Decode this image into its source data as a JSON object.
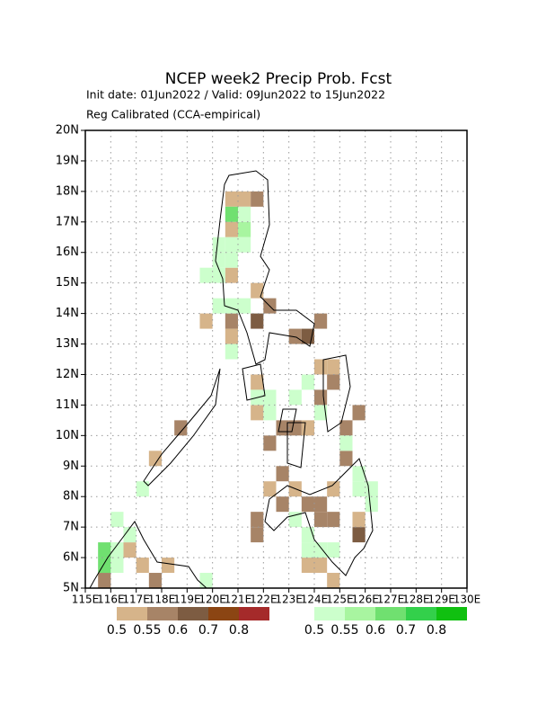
{
  "map": {
    "title": "NCEP week2 Precip Prob. Fcst",
    "subtitle": "Init date: 01Jun2022 / Valid: 09Jun2022 to 15Jun2022",
    "method": "Reg Calibrated (CCA-empirical)",
    "xlim": [
      115,
      130
    ],
    "ylim": [
      5,
      20
    ],
    "cell_size": 0.5,
    "grid": true,
    "xticks": [
      {
        "value": 115,
        "label": "115E"
      },
      {
        "value": 116,
        "label": "116E"
      },
      {
        "value": 117,
        "label": "117E"
      },
      {
        "value": 118,
        "label": "118E"
      },
      {
        "value": 119,
        "label": "119E"
      },
      {
        "value": 120,
        "label": "120E"
      },
      {
        "value": 121,
        "label": "121E"
      },
      {
        "value": 122,
        "label": "122E"
      },
      {
        "value": 123,
        "label": "123E"
      },
      {
        "value": 124,
        "label": "124E"
      },
      {
        "value": 125,
        "label": "125E"
      },
      {
        "value": 126,
        "label": "126E"
      },
      {
        "value": 127,
        "label": "127E"
      },
      {
        "value": 128,
        "label": "128E"
      },
      {
        "value": 129,
        "label": "129E"
      },
      {
        "value": 130,
        "label": "130E"
      }
    ],
    "yticks": [
      {
        "value": 5,
        "label": "5N"
      },
      {
        "value": 6,
        "label": "6N"
      },
      {
        "value": 7,
        "label": "7N"
      },
      {
        "value": 8,
        "label": "8N"
      },
      {
        "value": 9,
        "label": "9N"
      },
      {
        "value": 10,
        "label": "10N"
      },
      {
        "value": 11,
        "label": "11N"
      },
      {
        "value": 12,
        "label": "12N"
      },
      {
        "value": 13,
        "label": "13N"
      },
      {
        "value": 14,
        "label": "14N"
      },
      {
        "value": 15,
        "label": "15N"
      },
      {
        "value": 16,
        "label": "16N"
      },
      {
        "value": 17,
        "label": "17N"
      },
      {
        "value": 18,
        "label": "18N"
      },
      {
        "value": 19,
        "label": "19N"
      },
      {
        "value": 20,
        "label": "20N"
      }
    ],
    "levels": [
      0.5,
      0.55,
      0.6,
      0.7,
      0.8
    ],
    "below_colors": [
      "#d6b48a",
      "#a78467",
      "#7d5c42",
      "#8b4513",
      "#a52a2a"
    ],
    "above_colors": [
      "#ccffcc",
      "#a8f5a0",
      "#70e070",
      "#33d04b",
      "#10c010"
    ],
    "below": [
      [
        120.5,
        17.5,
        0.5
      ],
      [
        121,
        17.5,
        0.5
      ],
      [
        121.5,
        17.5,
        0.55
      ],
      [
        120.5,
        16.5,
        0.5
      ],
      [
        120.5,
        15,
        0.5
      ],
      [
        121.5,
        14.5,
        0.5
      ],
      [
        122,
        14,
        0.55
      ],
      [
        120.5,
        13.5,
        0.55
      ],
      [
        119.5,
        13.5,
        0.5
      ],
      [
        120.5,
        13,
        0.5
      ],
      [
        121.5,
        13.5,
        0.6
      ],
      [
        123,
        13,
        0.55
      ],
      [
        123.5,
        13,
        0.6
      ],
      [
        124,
        13.5,
        0.55
      ],
      [
        124,
        12,
        0.5
      ],
      [
        124.5,
        12,
        0.5
      ],
      [
        124,
        11,
        0.55
      ],
      [
        124.5,
        11.5,
        0.55
      ],
      [
        121.5,
        11.5,
        0.5
      ],
      [
        121.5,
        10.5,
        0.5
      ],
      [
        122.5,
        10,
        0.55
      ],
      [
        123,
        10,
        0.55
      ],
      [
        123.5,
        10,
        0.5
      ],
      [
        122,
        9.5,
        0.55
      ],
      [
        122.5,
        8.5,
        0.55
      ],
      [
        125,
        10,
        0.55
      ],
      [
        125.5,
        10.5,
        0.55
      ],
      [
        125,
        9,
        0.55
      ],
      [
        122,
        8,
        0.5
      ],
      [
        122.5,
        7.5,
        0.55
      ],
      [
        123,
        8,
        0.5
      ],
      [
        123.5,
        7.5,
        0.55
      ],
      [
        124,
        7.5,
        0.55
      ],
      [
        124.5,
        7,
        0.55
      ],
      [
        124,
        7,
        0.55
      ],
      [
        124.5,
        8,
        0.5
      ],
      [
        121.5,
        7,
        0.55
      ],
      [
        121.5,
        6.5,
        0.55
      ],
      [
        125.5,
        6.5,
        0.6
      ],
      [
        123.5,
        5.5,
        0.5
      ],
      [
        124,
        5.5,
        0.5
      ],
      [
        124.5,
        5,
        0.5
      ],
      [
        115.5,
        5,
        0.55
      ],
      [
        116.5,
        6,
        0.5
      ],
      [
        117,
        5.5,
        0.5
      ],
      [
        117.5,
        5,
        0.55
      ],
      [
        118,
        5.5,
        0.5
      ],
      [
        118.5,
        10,
        0.55
      ],
      [
        117.5,
        9,
        0.5
      ],
      [
        125.5,
        7,
        0.5
      ]
    ],
    "above": [
      [
        119.5,
        15,
        0.5
      ],
      [
        120,
        15,
        0.5
      ],
      [
        120,
        15.5,
        0.5
      ],
      [
        120,
        16,
        0.5
      ],
      [
        120.5,
        16,
        0.5
      ],
      [
        121,
        16.5,
        0.55
      ],
      [
        121,
        17,
        0.5
      ],
      [
        120.5,
        17,
        0.6
      ],
      [
        121,
        16,
        0.5
      ],
      [
        120.5,
        15.5,
        0.5
      ],
      [
        121,
        14,
        0.5
      ],
      [
        120.5,
        14,
        0.5
      ],
      [
        120,
        14,
        0.5
      ],
      [
        120.5,
        12.5,
        0.5
      ],
      [
        121.5,
        11,
        0.5
      ],
      [
        122,
        11,
        0.5
      ],
      [
        123,
        11,
        0.5
      ],
      [
        122,
        10.5,
        0.5
      ],
      [
        123.5,
        11.5,
        0.5
      ],
      [
        124,
        10.5,
        0.5
      ],
      [
        125,
        9.5,
        0.5
      ],
      [
        125.5,
        8.5,
        0.5
      ],
      [
        125.5,
        8,
        0.5
      ],
      [
        126,
        8,
        0.5
      ],
      [
        126,
        7.5,
        0.5
      ],
      [
        123,
        7,
        0.5
      ],
      [
        123.5,
        6.5,
        0.5
      ],
      [
        123.5,
        6,
        0.5
      ],
      [
        124,
        6,
        0.5
      ],
      [
        124.5,
        6,
        0.5
      ],
      [
        115.5,
        5.5,
        0.6
      ],
      [
        115.5,
        6,
        0.6
      ],
      [
        116,
        5.5,
        0.5
      ],
      [
        116,
        6,
        0.5
      ],
      [
        116.5,
        6.5,
        0.5
      ],
      [
        116,
        7,
        0.5
      ],
      [
        117,
        8,
        0.5
      ],
      [
        119.5,
        5,
        0.5
      ]
    ]
  }
}
